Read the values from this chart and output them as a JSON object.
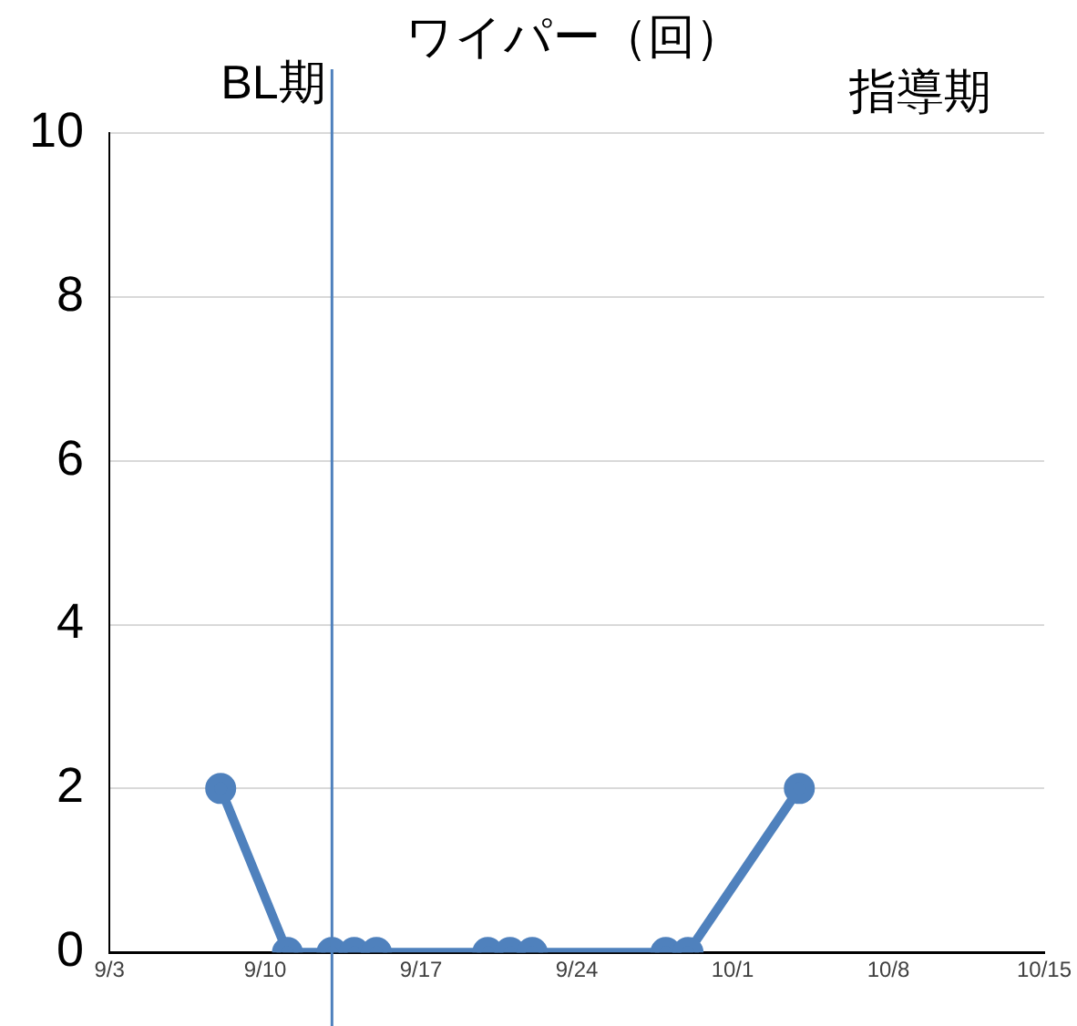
{
  "chart_data": {
    "type": "line",
    "title": "ワイパー（回）",
    "annotations": [
      "BL期",
      "指導期"
    ],
    "x": [
      "--09-08",
      "--09-11",
      "--09-13",
      "--09-14",
      "--09-15",
      "--09-20",
      "--09-21",
      "--09-22",
      "--09-28",
      "--09-29",
      "--10-04"
    ],
    "series": [
      {
        "color": "#4f81bd",
        "values": [
          2,
          0,
          0,
          0,
          0,
          0,
          0,
          0,
          0,
          0,
          2
        ]
      }
    ],
    "xlim": [
      "--09-03",
      "--10-15"
    ],
    "xticks": [
      {
        "value": "--09-03",
        "label": "9/3"
      },
      {
        "value": "--09-10",
        "label": "9/10"
      },
      {
        "value": "--09-17",
        "label": "9/17"
      },
      {
        "value": "--09-24",
        "label": "9/24"
      },
      {
        "value": "--10-01",
        "label": "10/1"
      },
      {
        "value": "--10-08",
        "label": "10/8"
      },
      {
        "value": "--10-15",
        "label": "10/15"
      }
    ],
    "ylim": [
      0,
      10
    ],
    "yticks": [
      0,
      2,
      4,
      6,
      8,
      10
    ],
    "ref_lines": [
      {
        "axis": "x",
        "value": "--09-13",
        "color": "#4f81bd"
      }
    ],
    "grid": "y",
    "legend": false,
    "marker": "circle",
    "line_style": "solid"
  }
}
